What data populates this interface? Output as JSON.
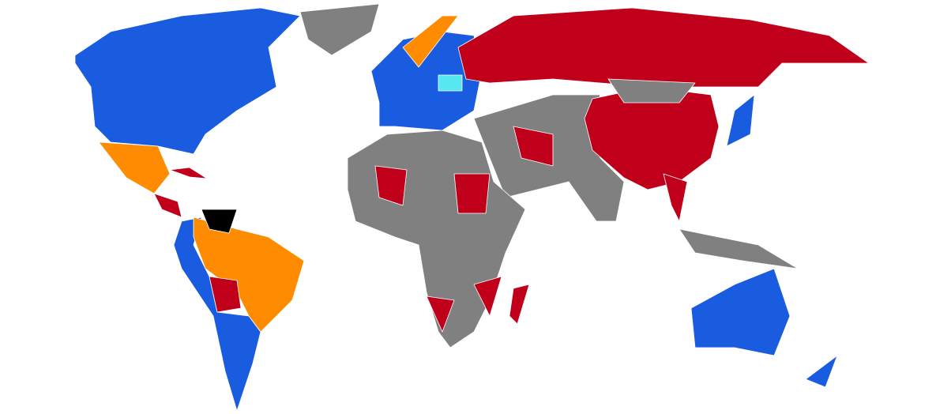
{
  "palette": [
    "#1a5ce0",
    "#c0001a",
    "#ff8c00",
    "#808080",
    "#000000",
    "#55e8f0"
  ]
}
